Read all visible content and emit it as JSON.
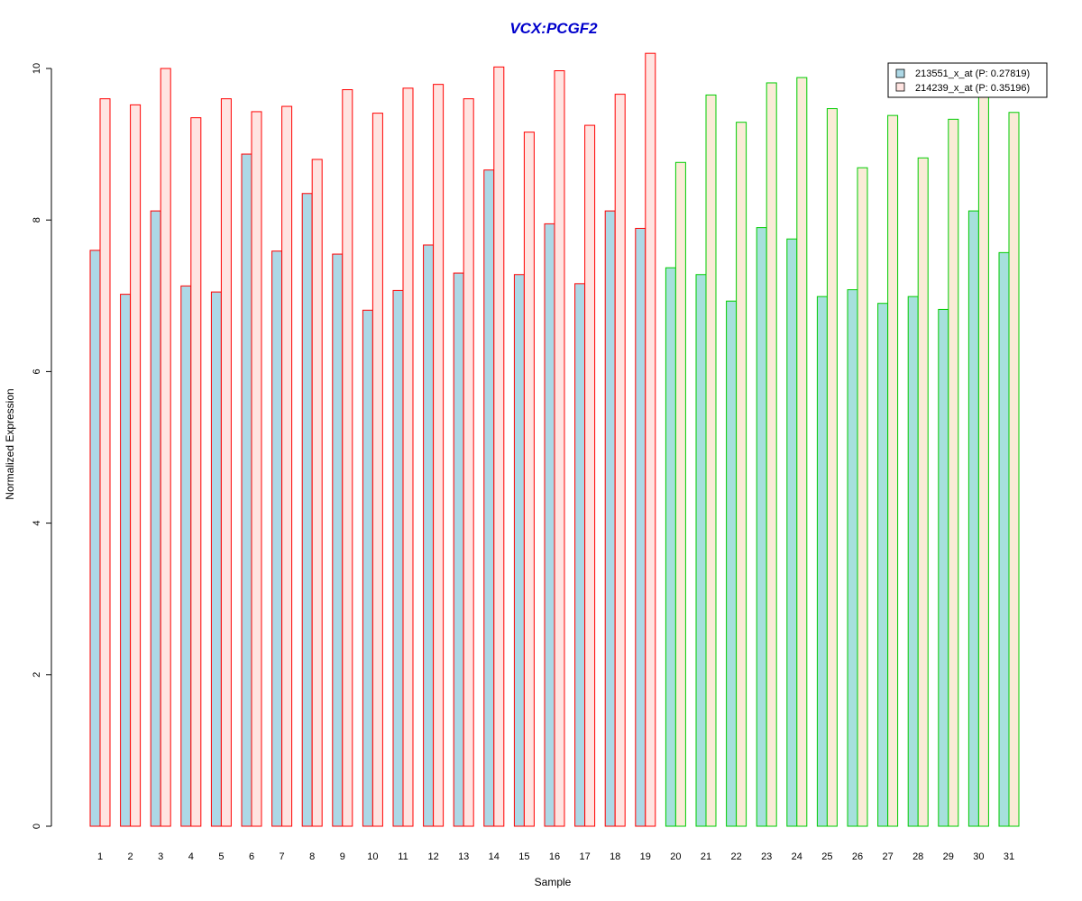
{
  "chart_data": {
    "type": "bar",
    "title": "VCX:PCGF2",
    "xlabel": "Sample",
    "ylabel": "Normalized Expression",
    "ylim": [
      0,
      10
    ],
    "yticks": [
      "0",
      "2",
      "4",
      "6",
      "8",
      "10"
    ],
    "categories": [
      "1",
      "2",
      "3",
      "4",
      "5",
      "6",
      "7",
      "8",
      "9",
      "10",
      "11",
      "12",
      "13",
      "14",
      "15",
      "16",
      "17",
      "18",
      "19",
      "20",
      "21",
      "22",
      "23",
      "24",
      "25",
      "26",
      "27",
      "28",
      "29",
      "30",
      "31"
    ],
    "series": [
      {
        "name": "213551_x_at (P: 0.27819)",
        "values": [
          7.6,
          7.02,
          8.12,
          7.13,
          7.05,
          8.87,
          7.59,
          8.35,
          7.55,
          6.81,
          7.07,
          7.67,
          7.3,
          8.66,
          7.28,
          7.95,
          7.16,
          8.12,
          7.89,
          7.37,
          7.28,
          6.93,
          7.9,
          7.75,
          6.99,
          7.08,
          6.9,
          6.99,
          6.82,
          8.12,
          7.57
        ]
      },
      {
        "name": "214239_x_at (P: 0.35196)",
        "values": [
          9.6,
          9.52,
          10.0,
          9.35,
          9.6,
          9.43,
          9.5,
          8.8,
          9.72,
          9.41,
          9.74,
          9.79,
          9.6,
          10.02,
          9.16,
          9.97,
          9.25,
          9.66,
          10.2,
          8.76,
          9.65,
          9.29,
          9.81,
          9.88,
          9.47,
          8.69,
          9.38,
          8.82,
          9.33,
          9.7,
          9.42
        ]
      }
    ],
    "legend_position": "top-right",
    "group_colors": {
      "group1_border": "#ff0000",
      "group2_border": "#00cc00",
      "series1_fill": "#add8e6",
      "series2_fill_group1": "#ffe4e1",
      "series2_fill_group2": "#faebd7",
      "series1_fill_group2": "#a6e0dc"
    },
    "group1_count": 19
  }
}
